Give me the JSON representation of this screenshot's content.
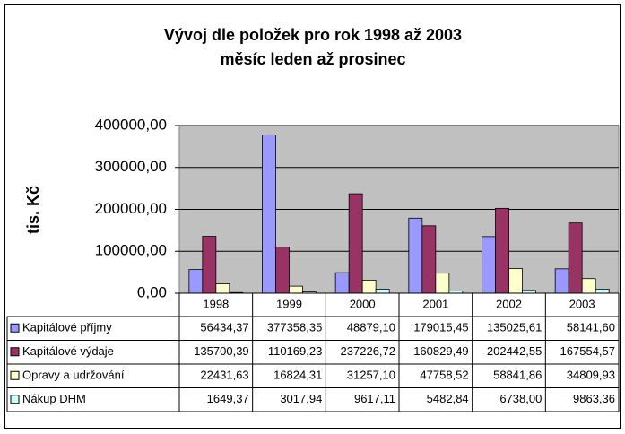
{
  "chart_data": {
    "type": "bar",
    "title": "Vývoj dle položek pro rok 1998 až 2003",
    "subtitle": "měsíc leden až prosinec",
    "y_label": "tis. Kč",
    "categories": [
      "1998",
      "1999",
      "2000",
      "2001",
      "2002",
      "2003"
    ],
    "series": [
      {
        "name": "Kapitálové příjmy",
        "color": "#9999ff",
        "values": [
          56434.37,
          377358.35,
          48879.1,
          179015.45,
          135025.61,
          58141.6
        ],
        "value_labels": [
          "56434,37",
          "377358,35",
          "48879,10",
          "179015,45",
          "135025,61",
          "58141,60"
        ]
      },
      {
        "name": "Kapitálové výdaje",
        "color": "#993366",
        "values": [
          135700.39,
          110169.23,
          237226.72,
          160829.49,
          202442.55,
          167554.57
        ],
        "value_labels": [
          "135700,39",
          "110169,23",
          "237226,72",
          "160829,49",
          "202442,55",
          "167554,57"
        ]
      },
      {
        "name": "Opravy a udržování",
        "color": "#ffffcc",
        "values": [
          22431.63,
          16824.31,
          31257.1,
          47758.52,
          58841.86,
          34809.93
        ],
        "value_labels": [
          "22431,63",
          "16824,31",
          "31257,10",
          "47758,52",
          "58841,86",
          "34809,93"
        ]
      },
      {
        "name": "Nákup DHM",
        "color": "#ccffff",
        "values": [
          1649.37,
          3017.94,
          9617.11,
          5482.84,
          6738.0,
          9863.36
        ],
        "value_labels": [
          "1649,37",
          "3017,94",
          "9617,11",
          "5482,84",
          "6738,00",
          "9863,36"
        ]
      }
    ],
    "ylim": [
      0,
      400000
    ],
    "yticks": [
      {
        "value": 0,
        "label": "0,00"
      },
      {
        "value": 100000,
        "label": "100000,00"
      },
      {
        "value": 200000,
        "label": "200000,00"
      },
      {
        "value": 300000,
        "label": "300000,00"
      },
      {
        "value": 400000,
        "label": "400000,00"
      }
    ],
    "grid": true,
    "plot_background": "#c0c0c0"
  }
}
